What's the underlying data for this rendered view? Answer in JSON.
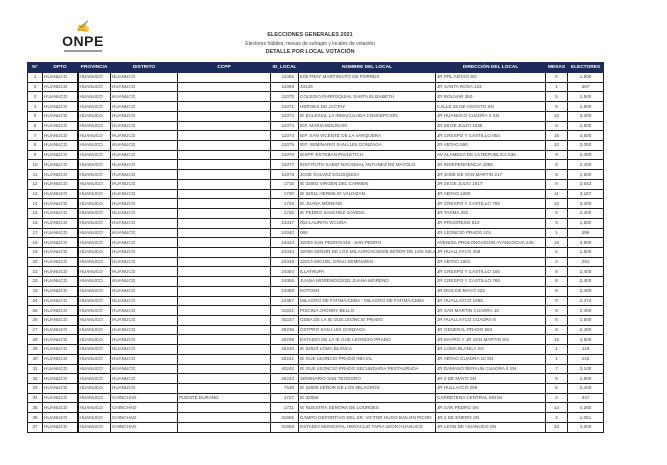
{
  "logo": {
    "text": "ONPE"
  },
  "header": {
    "title": "ELECCIONES GENERALES 2021",
    "subtitle": "Electores hábiles, mesas de sufragio y locales de votación",
    "section": "DETALLE POR LOCAL VOTACIÓN"
  },
  "columns": [
    "N°",
    "DPTO",
    "PROVINCIA",
    "DISTRITO",
    "CCPP",
    "ID_LOCAL",
    "NOMBRE DEL LOCAL",
    "DIRECCIÓN DEL LOCAL",
    "MESAS",
    "ELECTORES"
  ],
  "rows": [
    [
      "1",
      "HUANUCO",
      "HUANUCO",
      "HUANUCO",
      "",
      "11065",
      "E05 FRAY MARTINCITO DE PORRES",
      "JR PRL ABTAO SN",
      "5",
      "1,500"
    ],
    [
      "2",
      "HUANUCO",
      "HUANUCO",
      "HUANUCO",
      "",
      "11069",
      "33136",
      "JR SANTA ROSA 123",
      "1",
      "367"
    ],
    [
      "3",
      "HUANUCO",
      "HUANUCO",
      "HUANUCO",
      "",
      "11070",
      "COLEGIO PARROQUIAL SANTA ELIZABETH",
      "JR BOLIVAR 360",
      "5",
      "1,500"
    ],
    [
      "4",
      "HUANUCO",
      "HUANUCO",
      "HUANUCO",
      "",
      "11071",
      "HEROES DE JACTAY",
      "CALLE 28 DE AGOSTO SN",
      "5",
      "1,500"
    ],
    [
      "5",
      "HUANUCO",
      "HUANUCO",
      "HUANUCO",
      "",
      "11072",
      "IE ECLESIAL LA INMACULADA CONCEPCION",
      "JR HUANUCO CUADRA 2 SN",
      "10",
      "3,000"
    ],
    [
      "6",
      "HUANUCO",
      "HUANUCO",
      "HUANUCO",
      "",
      "11073",
      "IEP. MARIA MOLINARI",
      "JR 28 DE JULIO 1048",
      "5",
      "1,500"
    ],
    [
      "7",
      "HUANUCO",
      "HUANUCO",
      "HUANUCO",
      "",
      "11074",
      "IEP. SAN VICENTE DE LA VARQUERA",
      "JR CRESPO Y CASTILLO 854",
      "15",
      "4,500"
    ],
    [
      "8",
      "HUANUCO",
      "HUANUCO",
      "HUANUCO",
      "",
      "11075",
      "IEP. SEMINARIO SAN LUIS GONZAGA",
      "JR ABTAO 590",
      "10",
      "3,000"
    ],
    [
      "9",
      "HUANUCO",
      "HUANUCO",
      "HUANUCO",
      "",
      "11076",
      "IESPP. ESTEBAN PAVLETICH",
      "AV ALAMEDA DE LA REPUBLICA 535",
      "8",
      "2,400"
    ],
    [
      "10",
      "HUANUCO",
      "HUANUCO",
      "HUANUCO",
      "",
      "11077",
      "INSTITUTO SABIO NACIONAL ANTUNEZ DE MAYOLO",
      "JR INDEPENDENCIA 1085",
      "8",
      "2,400"
    ],
    [
      "11",
      "HUANUCO",
      "HUANUCO",
      "HUANUCO",
      "",
      "11078",
      "JOSE GALVEZ EGUSQUIZA",
      "JR JOSE DE SAN MARTIN 217",
      "5",
      "1,500"
    ],
    [
      "12",
      "HUANUCO",
      "HUANUCO",
      "HUANUCO",
      "",
      "1718",
      "IE 32002 VIRGEN DEL CARMEN",
      "JR 28 DE JULIO 1617",
      "9",
      "2,543"
    ],
    [
      "13",
      "HUANUCO",
      "HUANUCO",
      "HUANUCO",
      "",
      "1720",
      "IE 32011 HERMILIO VALDIZAN",
      "JR ABTAO 1060",
      "11",
      "3,187"
    ],
    [
      "14",
      "HUANUCO",
      "HUANUCO",
      "HUANUCO",
      "",
      "1723",
      "IE JUANA MORENO",
      "JR CRESPO Y CASTILLO 785",
      "10",
      "3,000"
    ],
    [
      "15",
      "HUANUCO",
      "HUANUCO",
      "HUANUCO",
      "",
      "1726",
      "IE PEDRO SANCHEZ GAVIDIA",
      "JR TARMA 291",
      "8",
      "2,400"
    ],
    [
      "16",
      "HUANUCO",
      "HUANUCO",
      "HUANUCO",
      "",
      "24337",
      "003 LAURITA VICUÑA",
      "JR PROGRESO 610",
      "5",
      "1,500"
    ],
    [
      "17",
      "HUANUCO",
      "HUANUCO",
      "HUANUCO",
      "",
      "24340",
      "066",
      "JR LEONCIO PRADO 101",
      "1",
      "296"
    ],
    [
      "18",
      "HUANUCO",
      "HUANUCO",
      "HUANUCO",
      "",
      "24343",
      "32004 SAN PEDRO/449 - SAN PEDRO",
      "AVENIDA PROLONGACION AYANCOCHA 245",
      "15",
      "4,500"
    ],
    [
      "19",
      "HUANUCO",
      "HUANUCO",
      "HUANUCO",
      "",
      "24344",
      "32008 SEÑOR DE LOS MILAGROS/32008 SEÑOR DE LOS MILAGROS",
      "JR HUALLAYCO 258",
      "5",
      "1,500"
    ],
    [
      "20",
      "HUANUCO",
      "HUANUCO",
      "HUANUCO",
      "",
      "24349",
      "32814 MIGUEL GRAU SEMINARIO",
      "JR ABTAO 1601",
      "2",
      "291"
    ],
    [
      "21",
      "HUANUCO",
      "HUANUCO",
      "HUANUCO",
      "",
      "24354",
      "ILLATHUPA",
      "JR CRESPO Y CASTILLO 165",
      "8",
      "2,400"
    ],
    [
      "22",
      "HUANUCO",
      "HUANUCO",
      "HUANUCO",
      "",
      "24355",
      "JUANA MORENO/32032 JUANA MORENO",
      "JR CRESPO Y CASTILLO 785",
      "8",
      "2,400"
    ],
    [
      "23",
      "HUANUCO",
      "HUANUCO",
      "HUANUCO",
      "",
      "24356",
      "KOTOSH",
      "JR DOS DE MAYO 425",
      "8",
      "2,400"
    ],
    [
      "24",
      "HUANUCO",
      "HUANUCO",
      "HUANUCO",
      "",
      "24357",
      "MILAGRO DE FATIMA/CEBA - MILAGRO DE FATIMA/CEBA",
      "JR HUALLAYCO 1695",
      "9",
      "2,474"
    ],
    [
      "25",
      "HUANUCO",
      "HUANUCO",
      "HUANUCO",
      "",
      "31931",
      "PISCINA JHONNY BELLO",
      "JR SAN MARTIN CUADRA 15",
      "8",
      "2,400"
    ],
    [
      "26",
      "HUANUCO",
      "HUANUCO",
      "HUANUCO",
      "",
      "40237",
      "CEBA DE LA IE GUE LEONCIO PRADO",
      "JR HUALLAYCO CUADRA 9",
      "5",
      "1,500"
    ],
    [
      "27",
      "HUANUCO",
      "HUANUCO",
      "HUANUCO",
      "",
      "40238",
      "CETPRO SAN LUIS GONZAGA",
      "JR GENERAL PRADO 564",
      "8",
      "2,400"
    ],
    [
      "28",
      "HUANUCO",
      "HUANUCO",
      "HUANUCO",
      "",
      "40239",
      "ESTADIO DE LA IE GUE LEONCIO PRADO",
      "JR MAYRO Y JR SAN MARTIN SN",
      "15",
      "4,500"
    ],
    [
      "29",
      "HUANUCO",
      "HUANUCO",
      "HUANUCO",
      "",
      "40240",
      "IE 32023 LOMA BLANCA",
      "JR LOMA BLANCA SN",
      "1",
      "118"
    ],
    [
      "30",
      "HUANUCO",
      "HUANUCO",
      "HUANUCO",
      "",
      "40241",
      "IE GUE LEONCIO PRADO INICIAL",
      "JR ABTAO CUADRA 10 SN",
      "1",
      "143"
    ],
    [
      "31",
      "HUANUCO",
      "HUANUCO",
      "HUANUCO",
      "",
      "40242",
      "IE GUE LEONCIO PRADO SECUNDARIA RESTAURADA",
      "JR DAMASO BERAUN CUADRA 4 SN",
      "7",
      "2,100"
    ],
    [
      "32",
      "HUANUCO",
      "HUANUCO",
      "HUANUCO",
      "",
      "40243",
      "SEMINARIO SAN TEODORO",
      "JR 2 DE MAYO SN",
      "5",
      "1,500"
    ],
    [
      "33",
      "HUANUCO",
      "HUANUCO",
      "HUANUCO",
      "",
      "7548",
      "IE 32008 SEÑOR DE LOS MILAGROS",
      "JR HULLAYCO 258",
      "8",
      "2,400"
    ],
    [
      "34",
      "HUANUCO",
      "HUANUCO",
      "CHINCHAO",
      "PUENTE DURAND",
      "1727",
      "IE 32055",
      "CARRETERA CENTRAL KM 84",
      "2",
      "347"
    ],
    [
      "35",
      "HUANUCO",
      "HUANUCO",
      "CHINCHAO",
      "",
      "1731",
      "IE NUESTRA SEÑORA DE LOURDES",
      "JR SAN PEDRO SN",
      "14",
      "4,200"
    ],
    [
      "36",
      "HUANUCO",
      "HUANUCO",
      "CHINCHAO",
      "",
      "31655",
      "CAMPO DEPORTIVO DEL SR. VICTOR HUGO BAILON PICON",
      "JR 2 DE ENERO SN",
      "4",
      "1,051"
    ],
    [
      "37",
      "HUANUCO",
      "HUANUCO",
      "CHINCHAO",
      "",
      "31656",
      "ESTADIO MUNICIPAL HERACLIO TAPIA LEON HUANUCO",
      "JR LEON DE HUANUCO SN",
      "10",
      "3,000"
    ]
  ],
  "colors": {
    "header_bg": "#1d2b5a",
    "logo_accent": "#c0282d"
  }
}
